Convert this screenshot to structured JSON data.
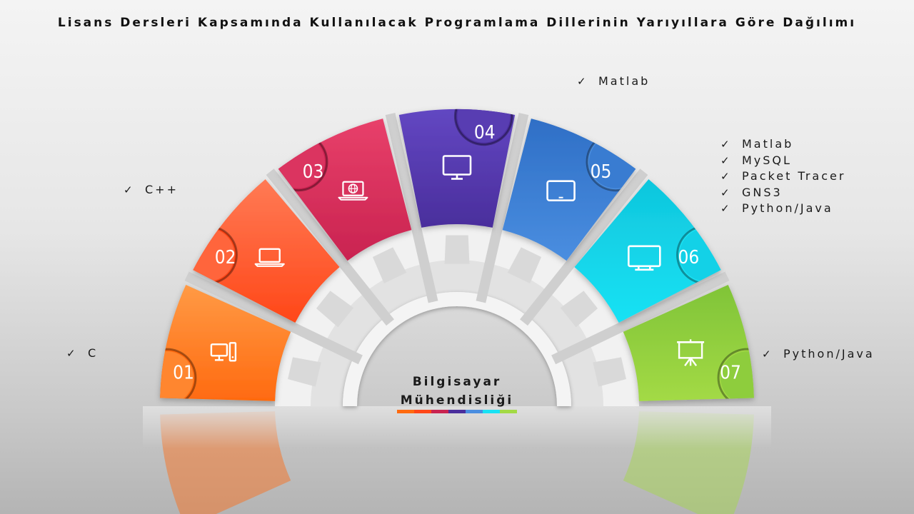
{
  "title": "Lisans Dersleri Kapsamında Kullanılacak Programlama Dillerinin Yarıyıllara Göre Dağılımı",
  "center": {
    "line1": "Bilgisayar",
    "line2": "Mühendisliği"
  },
  "check_glyph": "✓",
  "semesters": [
    {
      "number": "01",
      "icon": "desktop-computer-icon",
      "color_top": "#ff9a45",
      "color_bottom": "#ff6a10",
      "languages": [
        "C"
      ]
    },
    {
      "number": "02",
      "icon": "laptop-icon",
      "color_top": "#ff7a55",
      "color_bottom": "#ff4718",
      "languages": [
        "C++"
      ]
    },
    {
      "number": "03",
      "icon": "web-laptop-icon",
      "color_top": "#e8406a",
      "color_bottom": "#c92350",
      "languages": []
    },
    {
      "number": "04",
      "icon": "monitor-icon",
      "color_top": "#6247c2",
      "color_bottom": "#4a2e9c",
      "languages": [
        "Matlab"
      ]
    },
    {
      "number": "05",
      "icon": "tablet-icon",
      "color_top": "#2f6fc6",
      "color_bottom": "#4a8ee0",
      "languages": [
        "Matlab",
        "MySQL",
        "Packet Tracer",
        "GNS3",
        "Python/Java"
      ]
    },
    {
      "number": "06",
      "icon": "tv-monitor-icon",
      "color_top": "#0fc6dd",
      "color_bottom": "#19e2f4",
      "languages": []
    },
    {
      "number": "07",
      "icon": "presentation-board-icon",
      "color_top": "#80c438",
      "color_bottom": "#a3da45",
      "languages": [
        "Python/Java"
      ]
    }
  ]
}
